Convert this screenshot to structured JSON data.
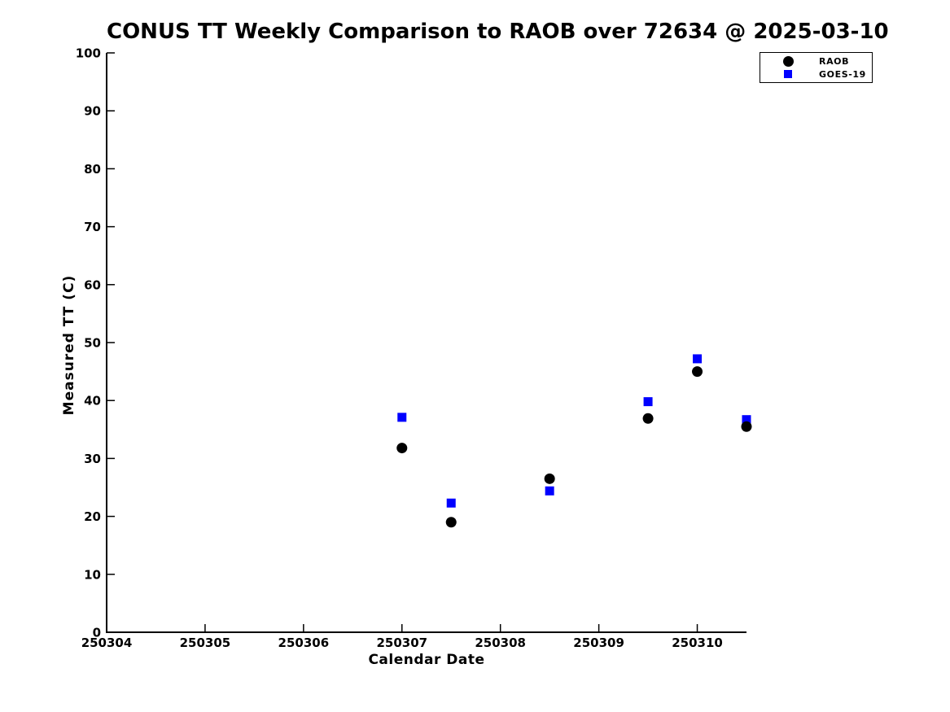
{
  "chart_data": {
    "type": "scatter",
    "title": "CONUS TT Weekly Comparison to RAOB over 72634 @ 2025-03-10",
    "xlabel": "Calendar Date",
    "ylabel": "Measured TT (C)",
    "xlim": [
      250304,
      250310.5
    ],
    "ylim": [
      0,
      100
    ],
    "xticks": [
      250304,
      250305,
      250306,
      250307,
      250308,
      250309,
      250310
    ],
    "yticks": [
      0,
      10,
      20,
      30,
      40,
      50,
      60,
      70,
      80,
      90,
      100
    ],
    "grid": false,
    "legend_position": "top-right",
    "background_color": "#ffffff",
    "axis_color": "#000000",
    "series": [
      {
        "name": "RAOB",
        "marker": "circle",
        "color": "#000000",
        "x": [
          250307.0,
          250307.5,
          250308.5,
          250309.5,
          250310.0,
          250310.5
        ],
        "y": [
          31.8,
          19.0,
          26.5,
          36.9,
          45.0,
          35.5
        ]
      },
      {
        "name": "GOES-19",
        "marker": "square",
        "color": "#0000ff",
        "x": [
          250307.0,
          250307.5,
          250308.5,
          250309.5,
          250310.0,
          250310.5
        ],
        "y": [
          37.1,
          22.3,
          24.4,
          39.8,
          47.2,
          36.7
        ]
      }
    ]
  }
}
